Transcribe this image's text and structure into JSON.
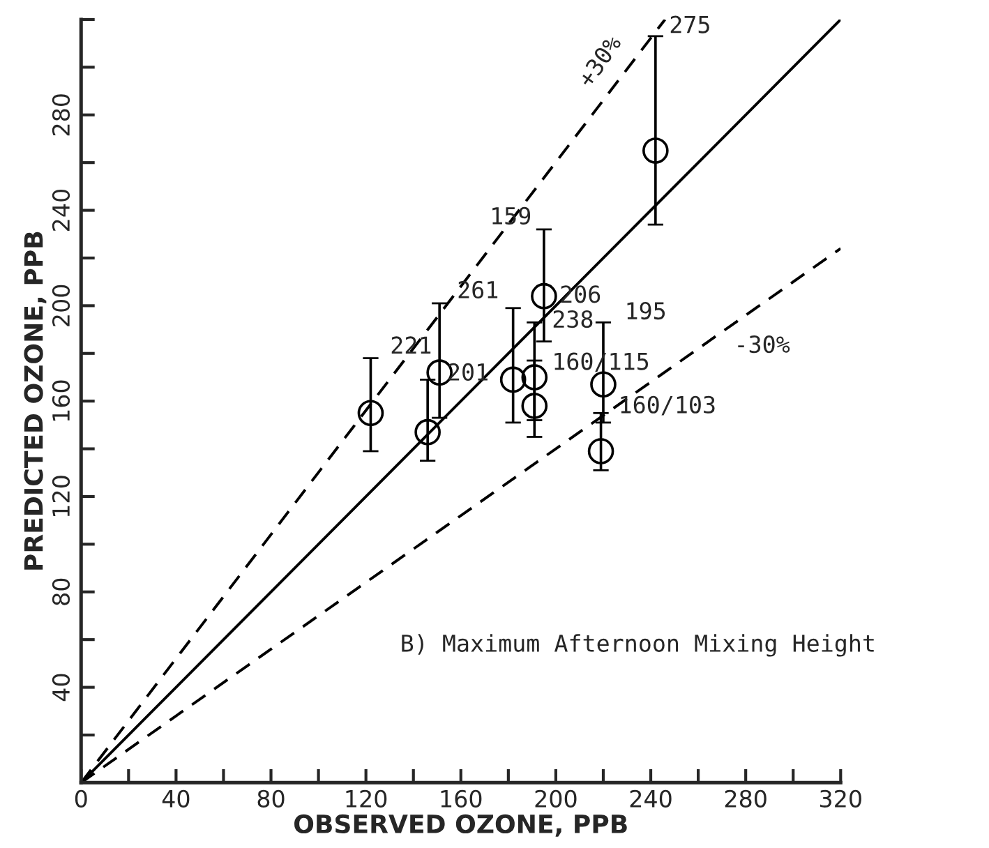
{
  "chart_data": {
    "type": "scatter",
    "xlabel": "OBSERVED OZONE, PPB",
    "ylabel": "PREDICTED OZONE, PPB",
    "xlim": [
      0,
      320
    ],
    "ylim": [
      0,
      320
    ],
    "xticks": [
      0,
      {
        "value": 20,
        "label": null
      },
      40,
      {
        "value": 60,
        "label": null
      },
      80,
      {
        "value": 100,
        "label": null
      },
      120,
      {
        "value": 140,
        "label": null
      },
      160,
      {
        "value": 180,
        "label": null
      },
      200,
      {
        "value": 220,
        "label": null
      },
      240,
      {
        "value": 260,
        "label": null
      },
      280,
      {
        "value": 300,
        "label": null
      },
      320
    ],
    "yticks": [
      {
        "value": 20,
        "label": null
      },
      40,
      {
        "value": 60,
        "label": null
      },
      80,
      {
        "value": 100,
        "label": null
      },
      120,
      {
        "value": 140,
        "label": null
      },
      160,
      {
        "value": 180,
        "label": null
      },
      200,
      {
        "value": 220,
        "label": null
      },
      240,
      {
        "value": 260,
        "label": null
      },
      280,
      {
        "value": 300,
        "label": null
      },
      {
        "value": 320,
        "label": null
      }
    ],
    "grid": false,
    "legend": false,
    "series": [
      {
        "marker": "circle",
        "color": "#000000",
        "x": [
          122,
          146,
          151,
          182,
          191,
          191,
          195,
          220,
          219,
          242
        ],
        "values": [
          155,
          147,
          172,
          169,
          170,
          158,
          204,
          167,
          139,
          265
        ],
        "errors": [
          [
            139,
            178
          ],
          [
            135,
            169
          ],
          [
            153,
            201
          ],
          [
            151,
            199
          ],
          [
            152,
            193
          ],
          [
            145,
            177
          ],
          [
            185,
            232
          ],
          [
            151,
            193
          ],
          [
            131,
            155
          ],
          [
            234,
            313
          ]
        ]
      },
      {
        "type": "line",
        "color": "#000000",
        "line_style": "solid",
        "x": [
          0,
          320
        ],
        "values": [
          0,
          320
        ]
      },
      {
        "type": "line",
        "color": "#000000",
        "line_style": "dashed",
        "x": [
          0,
          246
        ],
        "values": [
          0,
          320
        ]
      },
      {
        "type": "line",
        "color": "#000000",
        "line_style": "dashed",
        "x": [
          0,
          320
        ],
        "values": [
          0,
          224
        ]
      }
    ],
    "annotations": [
      {
        "text": "221",
        "x": 122,
        "y": 155
      },
      {
        "text": "261",
        "x": 151,
        "y": 201
      },
      {
        "text": "201",
        "x": 146,
        "y": 147
      },
      {
        "text": "159",
        "x": 195,
        "y": 232
      },
      {
        "text": "206",
        "x": 195,
        "y": 204
      },
      {
        "text": "238",
        "x": 191,
        "y": 170
      },
      {
        "text": "195",
        "x": 220,
        "y": 167
      },
      {
        "text": "160/115",
        "x": 191,
        "y": 158
      },
      {
        "text": "160/103",
        "x": 219,
        "y": 139
      },
      {
        "text": "275",
        "x": 242,
        "y": 313
      },
      {
        "text": "+30%",
        "x": 236,
        "y": 307
      },
      {
        "text": "-30%",
        "x": 280,
        "y": 196
      },
      "B) Maximum Afternoon Mixing Height"
    ]
  }
}
